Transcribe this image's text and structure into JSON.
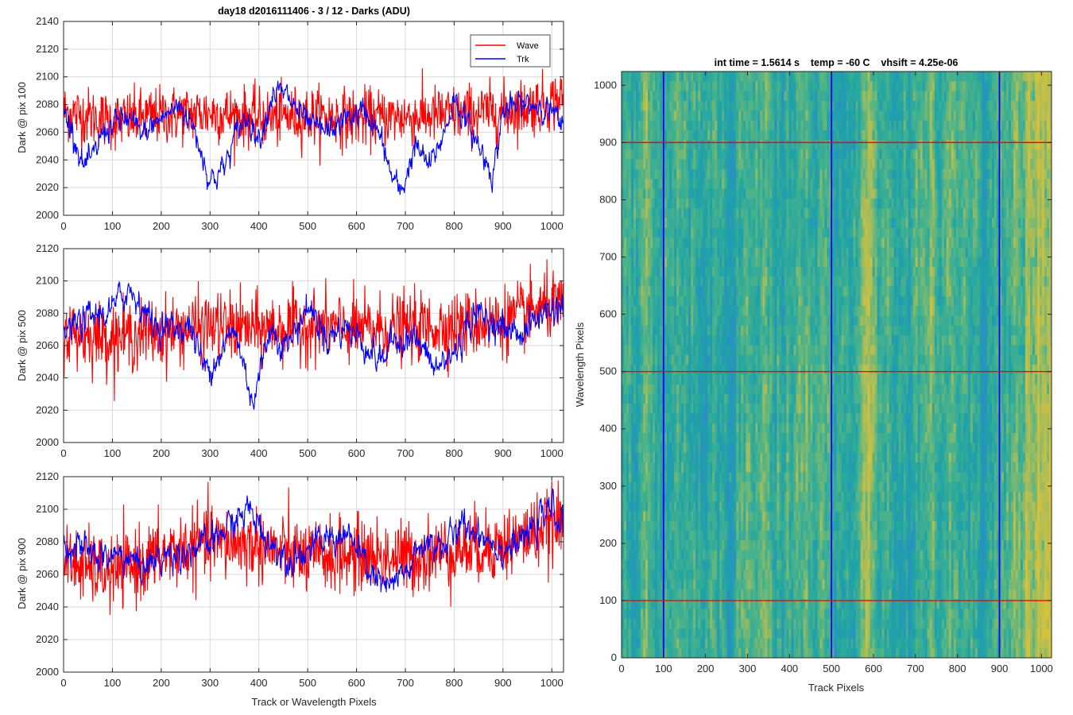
{
  "colors": {
    "wave": "#ff0000",
    "trk": "#0000ff",
    "grid": "#d9d9d9",
    "axis": "#262626"
  },
  "chart_data": [
    {
      "type": "line",
      "title": "day18 d2016111406 - 3 / 12 - Darks (ADU)",
      "xlabel": "",
      "ylabel": "Dark @ pix 100",
      "xlim": [
        0,
        1024
      ],
      "ylim": [
        2000,
        2140
      ],
      "xticks": [
        0,
        100,
        200,
        300,
        400,
        500,
        600,
        700,
        800,
        900,
        1000
      ],
      "yticks": [
        2000,
        2020,
        2040,
        2060,
        2080,
        2100,
        2120,
        2140
      ],
      "grid": true,
      "legend": {
        "position": "top-right",
        "entries": [
          "Wave",
          "Trk"
        ]
      },
      "series": [
        {
          "name": "Wave",
          "color": "#ff0000",
          "noise": 14,
          "x": [
            0,
            100,
            200,
            300,
            400,
            500,
            600,
            700,
            800,
            900,
            1000,
            1024
          ],
          "values": [
            2075,
            2068,
            2072,
            2074,
            2070,
            2072,
            2070,
            2071,
            2073,
            2075,
            2082,
            2085
          ]
        },
        {
          "name": "Trk",
          "color": "#0000ff",
          "noise": 4,
          "x": [
            0,
            20,
            40,
            60,
            80,
            100,
            130,
            160,
            200,
            240,
            270,
            300,
            330,
            360,
            380,
            400,
            430,
            460,
            500,
            540,
            580,
            620,
            650,
            670,
            690,
            720,
            750,
            780,
            800,
            820,
            850,
            880,
            900,
            940,
            980,
            1000,
            1024
          ],
          "values": [
            2075,
            2060,
            2035,
            2040,
            2060,
            2065,
            2070,
            2058,
            2070,
            2080,
            2060,
            2025,
            2035,
            2065,
            2070,
            2055,
            2090,
            2085,
            2065,
            2060,
            2070,
            2075,
            2055,
            2030,
            2015,
            2050,
            2035,
            2060,
            2085,
            2070,
            2050,
            2030,
            2075,
            2080,
            2080,
            2075,
            2060
          ]
        }
      ]
    },
    {
      "type": "line",
      "xlabel": "",
      "ylabel": "Dark @ pix 500",
      "xlim": [
        0,
        1024
      ],
      "ylim": [
        2000,
        2120
      ],
      "xticks": [
        0,
        100,
        200,
        300,
        400,
        500,
        600,
        700,
        800,
        900,
        1000
      ],
      "yticks": [
        2000,
        2020,
        2040,
        2060,
        2080,
        2100,
        2120
      ],
      "grid": true,
      "series": [
        {
          "name": "Wave",
          "color": "#ff0000",
          "noise": 14,
          "x": [
            0,
            100,
            200,
            300,
            400,
            500,
            600,
            700,
            800,
            900,
            1000,
            1024
          ],
          "values": [
            2068,
            2065,
            2068,
            2072,
            2070,
            2072,
            2070,
            2071,
            2072,
            2075,
            2085,
            2080
          ]
        },
        {
          "name": "Trk",
          "color": "#0000ff",
          "noise": 4,
          "x": [
            0,
            40,
            80,
            100,
            130,
            150,
            180,
            220,
            260,
            290,
            320,
            350,
            380,
            390,
            420,
            460,
            500,
            540,
            580,
            620,
            650,
            680,
            720,
            760,
            800,
            840,
            880,
            900,
            940,
            980,
            1024
          ],
          "values": [
            2068,
            2075,
            2080,
            2082,
            2095,
            2090,
            2075,
            2070,
            2072,
            2045,
            2055,
            2070,
            2035,
            2025,
            2070,
            2060,
            2085,
            2065,
            2072,
            2060,
            2050,
            2065,
            2065,
            2045,
            2055,
            2080,
            2075,
            2070,
            2068,
            2080,
            2085
          ]
        }
      ]
    },
    {
      "type": "line",
      "xlabel": "Track or Wavelength Pixels",
      "ylabel": "Dark @ pix 900",
      "xlim": [
        0,
        1024
      ],
      "ylim": [
        2000,
        2120
      ],
      "xticks": [
        0,
        100,
        200,
        300,
        400,
        500,
        600,
        700,
        800,
        900,
        1000
      ],
      "yticks": [
        2000,
        2020,
        2040,
        2060,
        2080,
        2100,
        2120
      ],
      "grid": true,
      "series": [
        {
          "name": "Wave",
          "color": "#ff0000",
          "noise": 15,
          "x": [
            0,
            100,
            200,
            300,
            400,
            500,
            600,
            700,
            800,
            900,
            1000,
            1024
          ],
          "values": [
            2068,
            2060,
            2072,
            2080,
            2078,
            2070,
            2072,
            2070,
            2075,
            2078,
            2090,
            2090
          ]
        },
        {
          "name": "Trk",
          "color": "#0000ff",
          "noise": 4,
          "x": [
            0,
            40,
            80,
            120,
            160,
            200,
            250,
            300,
            340,
            380,
            420,
            460,
            500,
            540,
            580,
            620,
            660,
            700,
            740,
            780,
            820,
            860,
            900,
            940,
            980,
            1000,
            1024
          ],
          "values": [
            2080,
            2075,
            2070,
            2072,
            2065,
            2070,
            2075,
            2078,
            2090,
            2100,
            2080,
            2070,
            2075,
            2082,
            2085,
            2065,
            2050,
            2060,
            2080,
            2078,
            2090,
            2085,
            2075,
            2080,
            2095,
            2100,
            2090
          ]
        }
      ]
    },
    {
      "type": "heatmap",
      "title": "int time = 1.5614 s    temp = -60 C    vhsift = 4.25e-06",
      "xlabel": "Track Pixels",
      "ylabel": "Wavelength Pixels",
      "xlim": [
        0,
        1024
      ],
      "ylim": [
        0,
        1024
      ],
      "xticks": [
        0,
        100,
        200,
        300,
        400,
        500,
        600,
        700,
        800,
        900,
        1000
      ],
      "yticks": [
        0,
        100,
        200,
        300,
        400,
        500,
        600,
        700,
        800,
        900,
        1000
      ],
      "colormap": [
        "#2a8fc4",
        "#1fa3a6",
        "#4bb38a",
        "#a9bd59",
        "#d6c13b"
      ],
      "vertical_lines": {
        "x": [
          100,
          500,
          900
        ],
        "color": "#0000ff"
      },
      "horizontal_lines": {
        "y": [
          100,
          500,
          900
        ],
        "color": "#ff0000"
      }
    }
  ]
}
